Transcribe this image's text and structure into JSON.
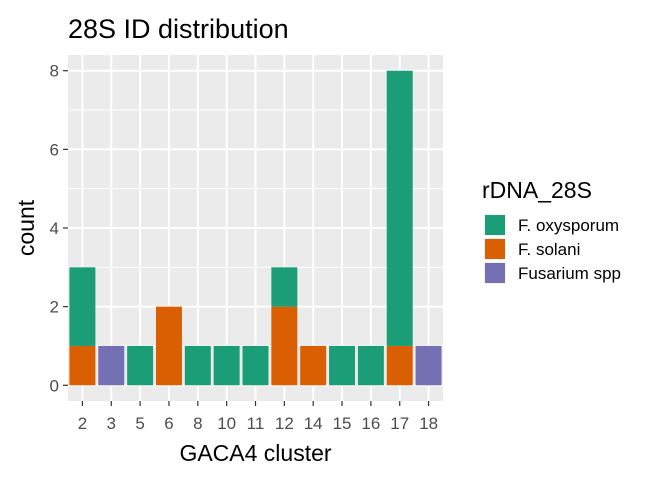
{
  "chart_data": {
    "type": "bar",
    "stacked": true,
    "title": "28S ID distribution",
    "xlabel": "GACA4 cluster",
    "ylabel": "count",
    "categories": [
      "2",
      "3",
      "5",
      "6",
      "8",
      "10",
      "11",
      "12",
      "14",
      "15",
      "16",
      "17",
      "18"
    ],
    "yticks": [
      "0",
      "2",
      "4",
      "6",
      "8"
    ],
    "ylim": [
      -0.4,
      8.4
    ],
    "grid": true,
    "legend": {
      "title": "rDNA_28S",
      "position": "right"
    },
    "series": [
      {
        "name": "F. oxysporum",
        "color": "#1b9e77",
        "values": [
          2,
          0,
          1,
          0,
          1,
          1,
          1,
          1,
          0,
          1,
          1,
          7,
          0
        ]
      },
      {
        "name": "F. solani",
        "color": "#d95f02",
        "values": [
          1,
          0,
          0,
          2,
          0,
          0,
          0,
          2,
          1,
          0,
          0,
          1,
          0
        ]
      },
      {
        "name": "Fusarium spp",
        "color": "#7570b3",
        "values": [
          0,
          1,
          0,
          0,
          0,
          0,
          0,
          0,
          0,
          0,
          0,
          0,
          1
        ]
      }
    ]
  }
}
